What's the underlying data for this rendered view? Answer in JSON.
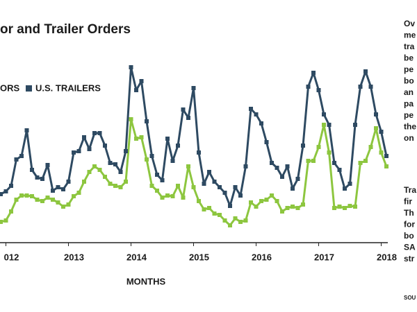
{
  "chart_data": {
    "type": "line",
    "title": "or and Trailer Orders",
    "xlabel": "MONTHS",
    "categories": [
      null,
      "012",
      null,
      null,
      null,
      null,
      null,
      null,
      null,
      null,
      null,
      null,
      null,
      "2013",
      null,
      null,
      null,
      null,
      null,
      null,
      null,
      null,
      null,
      null,
      null,
      "2014",
      null,
      null,
      null,
      null,
      null,
      null,
      null,
      null,
      null,
      null,
      null,
      "2015",
      null,
      null,
      null,
      null,
      null,
      null,
      null,
      null,
      null,
      null,
      null,
      "2016",
      null,
      null,
      null,
      null,
      null,
      null,
      null,
      null,
      null,
      null,
      null,
      "2017",
      null,
      null,
      null,
      null,
      null,
      null,
      null,
      null,
      null,
      null,
      null,
      "2018",
      null
    ],
    "ylim": [
      0,
      260
    ],
    "series": [
      {
        "name": "ORS",
        "color": "#8dc63f",
        "values": [
          30,
          32,
          45,
          62,
          68,
          68,
          67,
          62,
          60,
          65,
          62,
          58,
          52,
          55,
          67,
          72,
          88,
          102,
          110,
          105,
          95,
          85,
          82,
          80,
          88,
          178,
          150,
          152,
          120,
          82,
          75,
          65,
          68,
          67,
          82,
          65,
          110,
          80,
          60,
          48,
          50,
          42,
          40,
          32,
          25,
          35,
          30,
          32,
          58,
          52,
          60,
          62,
          68,
          60,
          45,
          50,
          52,
          50,
          55,
          118,
          118,
          138,
          170,
          130,
          50,
          52,
          50,
          53,
          52,
          115,
          118,
          138,
          165,
          130,
          110
        ]
      },
      {
        "name": "U.S. TRAILERS",
        "color": "#2e4a62",
        "values": [
          70,
          74,
          82,
          120,
          125,
          162,
          105,
          94,
          92,
          112,
          75,
          80,
          77,
          88,
          130,
          132,
          152,
          135,
          158,
          158,
          140,
          115,
          113,
          102,
          132,
          253,
          220,
          233,
          175,
          125,
          98,
          90,
          150,
          118,
          140,
          192,
          180,
          223,
          130,
          85,
          102,
          88,
          80,
          72,
          53,
          80,
          68,
          110,
          193,
          185,
          172,
          145,
          115,
          108,
          95,
          110,
          78,
          92,
          140,
          225,
          245,
          220,
          185,
          170,
          115,
          105,
          78,
          85,
          170,
          225,
          247,
          225,
          185,
          160,
          125
        ]
      }
    ]
  },
  "side_text": {
    "paragraph1": [
      "Ov",
      "me",
      "tra",
      "be",
      "pe",
      "bo",
      "an",
      "pa",
      "pe",
      "the",
      "on"
    ],
    "paragraph2": [
      "Tra",
      "fir",
      "Th",
      "for",
      "bo",
      "SA",
      "str"
    ],
    "source": "SOU"
  }
}
